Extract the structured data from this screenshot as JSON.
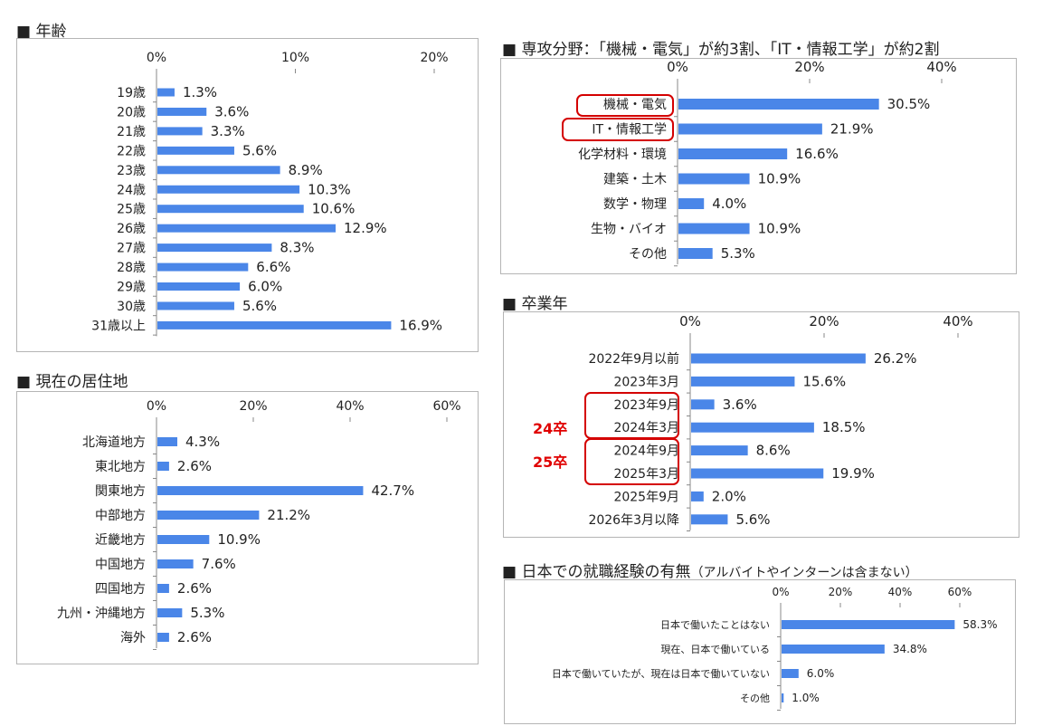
{
  "sections": {
    "age": "■ 年齢",
    "residence": "■ 現在の居住地",
    "major": "■ 専攻分野：「機械・電気」が約3割、「IT・情報工学」が約2割",
    "grad": "■ 卒業年",
    "work": "■ 日本での就職経験の有無",
    "work_note": "（アルバイトやインターンは含まない）"
  },
  "annotations": {
    "grad_24": "24卒",
    "grad_25": "25卒"
  },
  "colors": {
    "bar": "#4a86e8",
    "axis": "#888888",
    "highlight": "#d40000"
  },
  "chart_data": [
    {
      "id": "age",
      "type": "bar",
      "orientation": "horizontal",
      "xlim": [
        0,
        20
      ],
      "ticks": [
        "0%",
        "10%",
        "20%"
      ],
      "tick_values": [
        0,
        10,
        20
      ],
      "categories": [
        "19歳",
        "20歳",
        "21歳",
        "22歳",
        "23歳",
        "24歳",
        "25歳",
        "26歳",
        "27歳",
        "28歳",
        "29歳",
        "30歳",
        "31歳以上"
      ],
      "values": [
        1.3,
        3.6,
        3.3,
        5.6,
        8.9,
        10.3,
        10.6,
        12.9,
        8.3,
        6.6,
        6.0,
        5.6,
        16.9
      ],
      "labels": [
        "1.3%",
        "3.6%",
        "3.3%",
        "5.6%",
        "8.9%",
        "10.3%",
        "10.6%",
        "12.9%",
        "8.3%",
        "6.6%",
        "6.0%",
        "5.6%",
        "16.9%"
      ]
    },
    {
      "id": "residence",
      "type": "bar",
      "orientation": "horizontal",
      "xlim": [
        0,
        60
      ],
      "ticks": [
        "0%",
        "20%",
        "40%",
        "60%"
      ],
      "tick_values": [
        0,
        20,
        40,
        60
      ],
      "categories": [
        "北海道地方",
        "東北地方",
        "関東地方",
        "中部地方",
        "近畿地方",
        "中国地方",
        "四国地方",
        "九州・沖縄地方",
        "海外"
      ],
      "values": [
        4.3,
        2.6,
        42.7,
        21.2,
        10.9,
        7.6,
        2.6,
        5.3,
        2.6
      ],
      "labels": [
        "4.3%",
        "2.6%",
        "42.7%",
        "21.2%",
        "10.9%",
        "7.6%",
        "2.6%",
        "5.3%",
        "2.6%"
      ]
    },
    {
      "id": "major",
      "type": "bar",
      "orientation": "horizontal",
      "xlim": [
        0,
        40
      ],
      "ticks": [
        "0%",
        "20%",
        "40%"
      ],
      "tick_values": [
        0,
        20,
        40
      ],
      "categories": [
        "機械・電気",
        "IT・情報工学",
        "化学材料・環境",
        "建築・土木",
        "数学・物理",
        "生物・バイオ",
        "その他"
      ],
      "values": [
        30.5,
        21.9,
        16.6,
        10.9,
        4.0,
        10.9,
        5.3
      ],
      "labels": [
        "30.5%",
        "21.9%",
        "16.6%",
        "10.9%",
        "4.0%",
        "10.9%",
        "5.3%"
      ]
    },
    {
      "id": "grad",
      "type": "bar",
      "orientation": "horizontal",
      "xlim": [
        0,
        40
      ],
      "ticks": [
        "0%",
        "20%",
        "40%"
      ],
      "tick_values": [
        0,
        20,
        40
      ],
      "categories": [
        "2022年9月以前",
        "2023年3月",
        "2023年9月",
        "2024年3月",
        "2024年9月",
        "2025年3月",
        "2025年9月",
        "2026年3月以降"
      ],
      "values": [
        26.2,
        15.6,
        3.6,
        18.5,
        8.6,
        19.9,
        2.0,
        5.6
      ],
      "labels": [
        "26.2%",
        "15.6%",
        "3.6%",
        "18.5%",
        "8.6%",
        "19.9%",
        "2.0%",
        "5.6%"
      ]
    },
    {
      "id": "work",
      "type": "bar",
      "orientation": "horizontal",
      "xlim": [
        0,
        60
      ],
      "ticks": [
        "0%",
        "20%",
        "40%",
        "60%"
      ],
      "tick_values": [
        0,
        20,
        40,
        60
      ],
      "categories": [
        "日本で働いたことはない",
        "現在、日本で働いている",
        "日本で働いていたが、現在は日本で働いていない",
        "その他"
      ],
      "values": [
        58.3,
        34.8,
        6.0,
        1.0
      ],
      "labels": [
        "58.3%",
        "34.8%",
        "6.0%",
        "1.0%"
      ]
    }
  ]
}
